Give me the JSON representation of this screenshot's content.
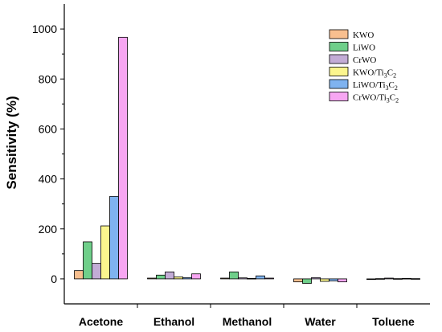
{
  "chart_data": {
    "type": "bar",
    "categories": [
      "Acetone",
      "Ethanol",
      "Methanol",
      "Water",
      "Toluene"
    ],
    "ylabel": "Sensitivity (%)",
    "xlabel": "",
    "ylim": [
      -100,
      1100
    ],
    "yticks": [
      0,
      200,
      400,
      600,
      800,
      1000
    ],
    "legend_position": "top-right",
    "series": [
      {
        "name": "KWO",
        "label_base": "KWO",
        "label_sub": "",
        "color": "#f8bf8f",
        "values": [
          33,
          3,
          3,
          -12,
          -2
        ]
      },
      {
        "name": "LiWO",
        "label_base": "LiWO",
        "label_sub": "",
        "color": "#6fcf8a",
        "values": [
          148,
          15,
          28,
          -18,
          1
        ]
      },
      {
        "name": "CrWO",
        "label_base": "CrWO",
        "label_sub": "",
        "color": "#c3acd6",
        "values": [
          62,
          28,
          4,
          5,
          3
        ]
      },
      {
        "name": "KWO/Ti3C2",
        "label_base": "KWO/Ti",
        "label_sub": "3",
        "label_tail": "C",
        "label_sub2": "2",
        "color": "#fbf58e",
        "values": [
          212,
          8,
          2,
          -10,
          1
        ]
      },
      {
        "name": "LiWO/Ti3C2",
        "label_base": "LiWO/Ti",
        "label_sub": "3",
        "label_tail": "C",
        "label_sub2": "2",
        "color": "#7fb3f0",
        "values": [
          330,
          5,
          12,
          -8,
          2
        ]
      },
      {
        "name": "CrWO/Ti3C2",
        "label_base": "CrWO/Ti",
        "label_sub": "3",
        "label_tail": "C",
        "label_sub2": "2",
        "color": "#f7a6f2",
        "values": [
          967,
          20,
          3,
          -12,
          1
        ]
      }
    ]
  }
}
